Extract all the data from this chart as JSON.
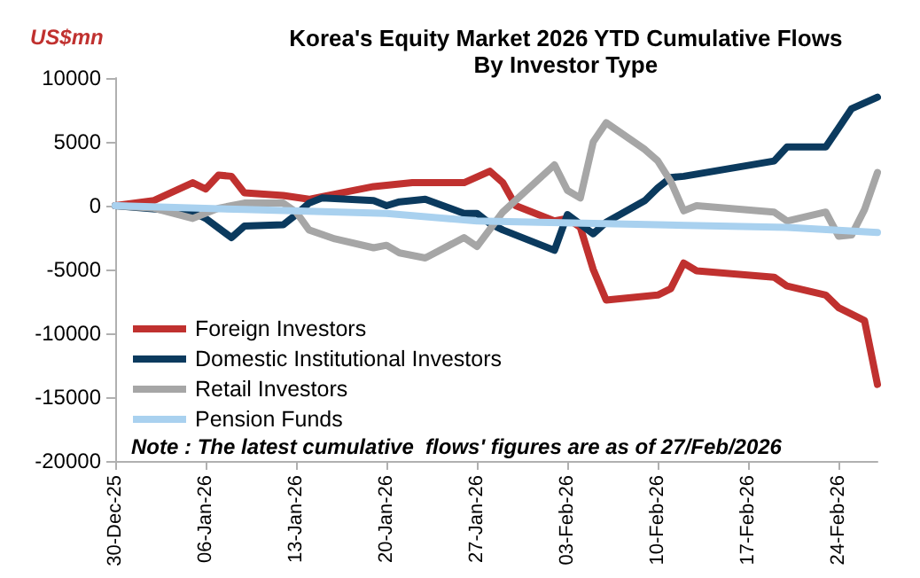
{
  "chart_data": {
    "type": "line",
    "title": "Korea's Equity Market 2026 YTD Cumulative Flows\nBy Investor Type",
    "ylabel": "US$mn",
    "annotations": [
      "Note : The latest cumulative  flows' figures are as of 27/Feb/2026"
    ],
    "xlim": [
      "2025-12-30",
      "2026-02-27"
    ],
    "xticks": [
      {
        "value": "2025-12-30",
        "label": "30-Dec-25"
      },
      {
        "value": "2026-01-06",
        "label": "06-Jan-26"
      },
      {
        "value": "2026-01-13",
        "label": "13-Jan-26"
      },
      {
        "value": "2026-01-20",
        "label": "20-Jan-26"
      },
      {
        "value": "2026-01-27",
        "label": "27-Jan-26"
      },
      {
        "value": "2026-02-03",
        "label": "03-Feb-26"
      },
      {
        "value": "2026-02-10",
        "label": "10-Feb-26"
      },
      {
        "value": "2026-02-17",
        "label": "17-Feb-26"
      },
      {
        "value": "2026-02-24",
        "label": "24-Feb-26"
      }
    ],
    "ylim": [
      -20000,
      10000
    ],
    "yticks": [
      -20000,
      -15000,
      -10000,
      -5000,
      0,
      5000,
      10000
    ],
    "grid": false,
    "legend": "bottom left",
    "marker": "none",
    "line_style": "solid",
    "series": [
      {
        "name": "Foreign Investors",
        "color": "#c0312f",
        "x": [
          "2025-12-30",
          "2026-01-02",
          "2026-01-05",
          "2026-01-06",
          "2026-01-07",
          "2026-01-08",
          "2026-01-09",
          "2026-01-12",
          "2026-01-14",
          "2026-01-15",
          "2026-01-19",
          "2026-01-22",
          "2026-01-26",
          "2026-01-28",
          "2026-01-29",
          "2026-01-30",
          "2026-02-02",
          "2026-02-03",
          "2026-02-04",
          "2026-02-05",
          "2026-02-06",
          "2026-02-10",
          "2026-02-11",
          "2026-02-12",
          "2026-02-13",
          "2026-02-19",
          "2026-02-20",
          "2026-02-23",
          "2026-02-24",
          "2026-02-26",
          "2026-02-27"
        ],
        "values": [
          0,
          400,
          1800,
          1300,
          2400,
          2300,
          1000,
          800,
          500,
          700,
          1500,
          1800,
          1800,
          2700,
          1800,
          0,
          -1200,
          -1000,
          -1700,
          -5000,
          -7400,
          -7000,
          -6500,
          -4500,
          -5100,
          -5600,
          -6300,
          -7000,
          -8000,
          -9000,
          -14000
        ]
      },
      {
        "name": "Domestic Institutional Investors",
        "color": "#0b3a5e",
        "x": [
          "2025-12-30",
          "2026-01-05",
          "2026-01-06",
          "2026-01-08",
          "2026-01-09",
          "2026-01-12",
          "2026-01-13",
          "2026-01-14",
          "2026-01-15",
          "2026-01-19",
          "2026-01-20",
          "2026-01-21",
          "2026-01-23",
          "2026-01-26",
          "2026-01-27",
          "2026-01-28",
          "2026-01-29",
          "2026-02-02",
          "2026-02-03",
          "2026-02-05",
          "2026-02-06",
          "2026-02-09",
          "2026-02-10",
          "2026-02-11",
          "2026-02-12",
          "2026-02-19",
          "2026-02-20",
          "2026-02-23",
          "2026-02-24",
          "2026-02-25",
          "2026-02-27"
        ],
        "values": [
          0,
          -500,
          -1000,
          -2500,
          -1600,
          -1500,
          -700,
          200,
          600,
          400,
          0,
          300,
          500,
          -600,
          -600,
          -1400,
          -1900,
          -3500,
          -700,
          -2200,
          -1300,
          400,
          1400,
          2200,
          2300,
          3500,
          4600,
          4600,
          6100,
          7600,
          8500
        ]
      },
      {
        "name": "Retail Investors",
        "color": "#a6a6a6",
        "x": [
          "2025-12-30",
          "2026-01-02",
          "2026-01-05",
          "2026-01-06",
          "2026-01-07",
          "2026-01-09",
          "2026-01-12",
          "2026-01-13",
          "2026-01-14",
          "2026-01-16",
          "2026-01-19",
          "2026-01-20",
          "2026-01-21",
          "2026-01-23",
          "2026-01-26",
          "2026-01-27",
          "2026-01-29",
          "2026-02-02",
          "2026-02-03",
          "2026-02-04",
          "2026-02-05",
          "2026-02-06",
          "2026-02-09",
          "2026-02-10",
          "2026-02-11",
          "2026-02-12",
          "2026-02-13",
          "2026-02-19",
          "2026-02-20",
          "2026-02-23",
          "2026-02-24",
          "2026-02-25",
          "2026-02-26",
          "2026-02-27"
        ],
        "values": [
          0,
          -200,
          -1000,
          -600,
          -200,
          200,
          200,
          -500,
          -1900,
          -2600,
          -3300,
          -3100,
          -3700,
          -4100,
          -2500,
          -3200,
          -500,
          3200,
          1200,
          600,
          5000,
          6500,
          4400,
          3500,
          1900,
          -400,
          0,
          -500,
          -1200,
          -500,
          -2400,
          -2300,
          -300,
          2600
        ]
      },
      {
        "name": "Pension Funds",
        "color": "#a9d1ef",
        "x": [
          "2025-12-30",
          "2026-01-09",
          "2026-01-20",
          "2026-01-27",
          "2026-02-10",
          "2026-02-20",
          "2026-02-27"
        ],
        "values": [
          0,
          -300,
          -600,
          -1200,
          -1500,
          -1700,
          -2100
        ]
      }
    ]
  }
}
